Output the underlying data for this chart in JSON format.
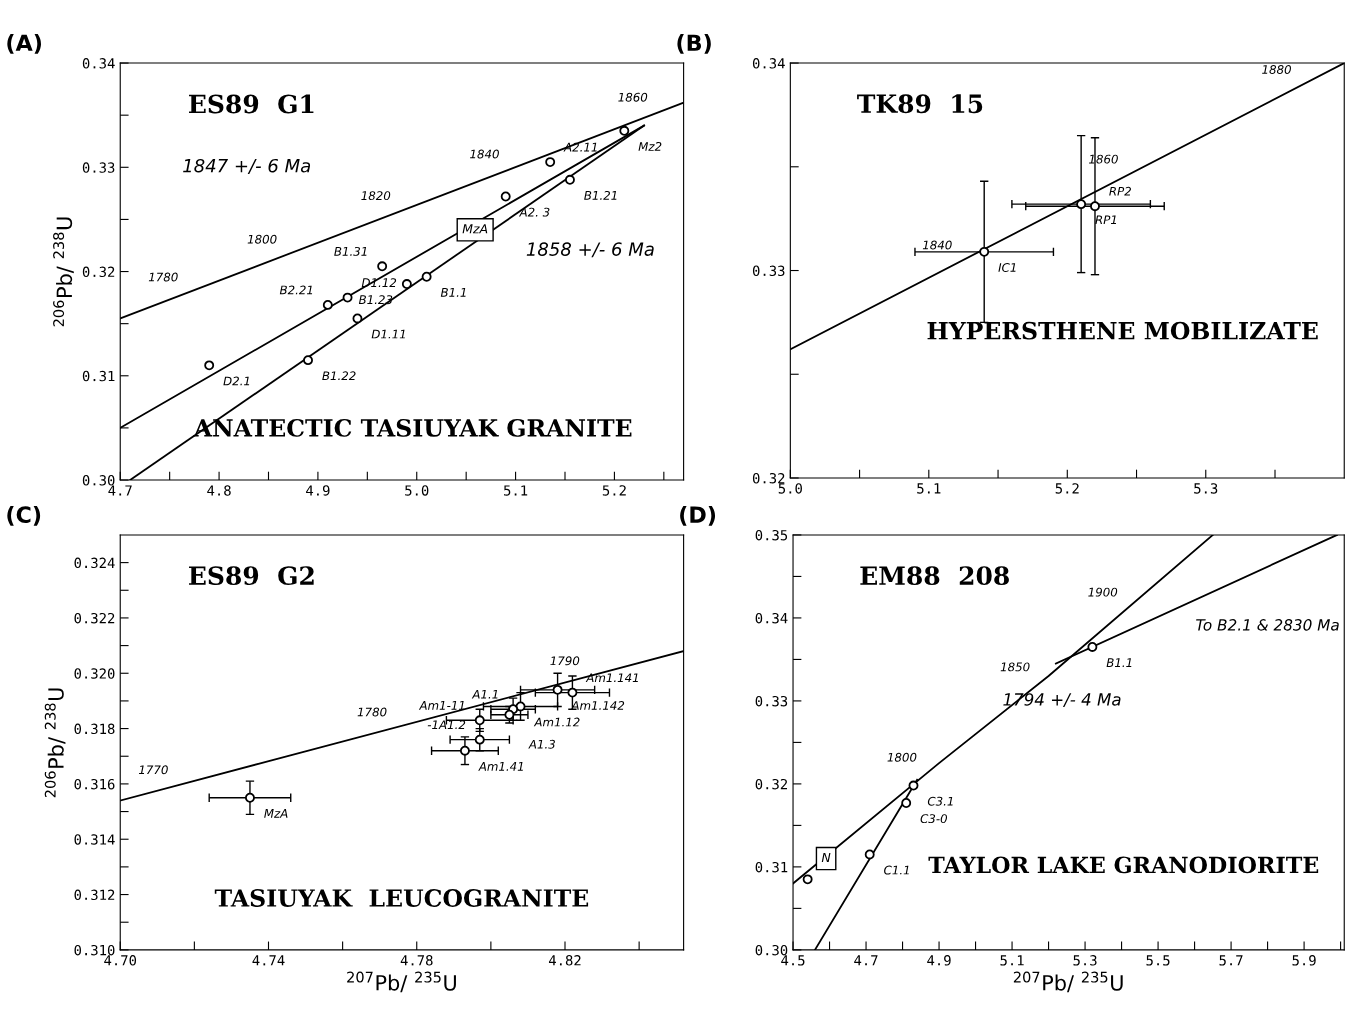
{
  "chart_data": [
    {
      "type": "scatter",
      "title": "(A)",
      "subtitle": "ES89  G1",
      "ylabel": "$^{206}$Pb/ $^{238}$U",
      "xlim": [
        4.7,
        5.27
      ],
      "ylim": [
        0.3,
        0.34
      ],
      "xticks": [
        4.7,
        {
          "value": 4.75,
          "label": null
        },
        4.8,
        {
          "value": 4.85,
          "label": null
        },
        4.9,
        {
          "value": 4.95,
          "label": null
        },
        {
          "value": 5.0,
          "label": "5.0"
        },
        {
          "value": 5.05,
          "label": null
        },
        5.1,
        {
          "value": 5.15,
          "label": null
        },
        5.2,
        {
          "value": 5.25,
          "label": null
        }
      ],
      "yticks": [
        {
          "value": 0.3,
          "label": "0.30"
        },
        {
          "value": 0.305,
          "label": null
        },
        0.31,
        {
          "value": 0.315,
          "label": null
        },
        {
          "value": 0.32,
          "label": "0.32"
        },
        {
          "value": 0.325,
          "label": null
        },
        0.33,
        {
          "value": 0.335,
          "label": null
        },
        0.34
      ],
      "series": [
        {
          "type": "line",
          "color": "#000000",
          "x": [
            4.7,
            5.27
          ],
          "values": [
            0.3155,
            0.3362
          ]
        },
        {
          "type": "line",
          "color": "#000000",
          "x": [
            4.7,
            5.23
          ],
          "values": [
            0.305,
            0.334
          ]
        },
        {
          "type": "line",
          "color": "#000000",
          "x": [
            4.71,
            5.23
          ],
          "values": [
            0.3,
            0.334
          ]
        },
        {
          "color": "#000000",
          "marker": "circle",
          "x": [
            4.79,
            4.91,
            4.93,
            4.965,
            5.09,
            5.135,
            5.21,
            5.155,
            5.01,
            4.99,
            4.94,
            4.89
          ],
          "values": [
            0.311,
            0.3168,
            0.3175,
            0.3205,
            0.3272,
            0.3305,
            0.3335,
            0.3288,
            0.3195,
            0.3188,
            0.3155,
            0.3115
          ]
        }
      ],
      "annotations": [
        {
          "text": "1780",
          "x": 4.77,
          "y": 0.31804
        },
        {
          "text": "1800",
          "x": 4.87,
          "y": 0.32167
        },
        {
          "text": "1820",
          "x": 4.985,
          "y": 0.32585
        },
        {
          "text": "1840",
          "x": 5.095,
          "y": 0.32984
        },
        {
          "text": "1860",
          "x": 5.245,
          "y": 0.33529
        },
        {
          "text": "D2.1",
          "x": 4.79,
          "y": 0.311
        },
        {
          "text": "B2.21",
          "x": 4.91,
          "y": 0.3168
        },
        {
          "text": "D1.12",
          "x": 4.93,
          "y": 0.3175
        },
        {
          "text": "B1.31",
          "x": 4.965,
          "y": 0.3205
        },
        {
          "text": "A2. 3",
          "x": 5.09,
          "y": 0.3272
        },
        {
          "text": "A2.11",
          "x": 5.135,
          "y": 0.3305
        },
        {
          "text": "Mz2",
          "x": 5.21,
          "y": 0.3335
        },
        {
          "text": "B1.21",
          "x": 5.155,
          "y": 0.3288
        },
        {
          "text": "B1.1",
          "x": 5.01,
          "y": 0.3195
        },
        {
          "text": "B1.23",
          "x": 4.99,
          "y": 0.3188
        },
        {
          "text": "D1.11",
          "x": 4.94,
          "y": 0.3155
        },
        {
          "text": "B1.22",
          "x": 4.89,
          "y": 0.3115
        },
        "MzA",
        "1847 +/- 6 Ma",
        "1858 +/- 6 Ma",
        "ANATECTIC TASIUYAK GRANITE"
      ]
    },
    {
      "type": "scatter",
      "title": "(B)",
      "subtitle": "TK89  15",
      "xlim": [
        5.0,
        5.4
      ],
      "ylim": [
        0.32,
        0.34
      ],
      "xticks": [
        {
          "value": 5.0,
          "label": "5.0"
        },
        {
          "value": 5.05,
          "label": null
        },
        5.1,
        {
          "value": 5.15,
          "label": null
        },
        5.2,
        {
          "value": 5.25,
          "label": null
        },
        5.3,
        {
          "value": 5.35,
          "label": null
        }
      ],
      "yticks": [
        {
          "value": 0.32,
          "label": "0.32"
        },
        {
          "value": 0.325,
          "label": null
        },
        {
          "value": 0.33,
          "label": "0.33"
        },
        {
          "value": 0.335,
          "label": null
        },
        {
          "value": 0.34,
          "label": "0.34"
        }
      ],
      "series": [
        {
          "type": "line",
          "color": "#000000",
          "x": [
            5.0,
            5.4
          ],
          "values": [
            0.3262,
            0.34
          ]
        },
        {
          "color": "#000000",
          "marker": "circle",
          "x": [
            5.14,
            5.21,
            5.22
          ],
          "values": [
            0.3309,
            0.3332,
            0.3331
          ],
          "xerrors": [
            0.05,
            0.05,
            0.05
          ],
          "errors": [
            0.0034,
            0.0033,
            0.0033
          ]
        }
      ],
      "annotations": [
        {
          "text": "1840",
          "x": 5.125,
          "y": 0.33051
        },
        {
          "text": "1860",
          "x": 5.245,
          "y": 0.33465
        },
        {
          "text": "1880",
          "x": 5.37,
          "y": 0.33897
        },
        {
          "text": "IC1",
          "x": 5.14,
          "y": 0.3309
        },
        {
          "text": "RP1",
          "x": 5.21,
          "y": 0.3332
        },
        {
          "text": "RP2",
          "x": 5.22,
          "y": 0.3331
        },
        "HYPERSTHENE MOBILIZATE"
      ]
    },
    {
      "type": "scatter",
      "title": "(C)",
      "subtitle": "ES89  G2",
      "xlabel": "$^{207}$Pb/ $^{235}$U",
      "ylabel": "$^{206}$Pb/ $^{238}$U",
      "xlim": [
        4.7,
        4.852
      ],
      "ylim": [
        0.31,
        0.325
      ],
      "xticks": [
        {
          "value": 4.7,
          "label": "4.70"
        },
        {
          "value": 4.72,
          "label": null
        },
        4.74,
        {
          "value": 4.76,
          "label": null
        },
        4.78,
        {
          "value": 4.8,
          "label": null
        },
        4.82,
        {
          "value": 4.84,
          "label": null
        }
      ],
      "yticks": [
        {
          "value": 0.31,
          "label": "0.310"
        },
        {
          "value": 0.311,
          "label": null
        },
        0.312,
        {
          "value": 0.313,
          "label": null
        },
        0.314,
        {
          "value": 0.315,
          "label": null
        },
        0.316,
        {
          "value": 0.317,
          "label": null
        },
        0.318,
        {
          "value": 0.319,
          "label": null
        },
        {
          "value": 0.32,
          "label": "0.320"
        },
        {
          "value": 0.321,
          "label": null
        },
        0.322,
        {
          "value": 0.323,
          "label": null
        },
        0.324
      ],
      "series": [
        {
          "type": "line",
          "color": "#000000",
          "x": [
            4.7,
            4.852
          ],
          "values": [
            0.3154,
            0.3208
          ]
        },
        {
          "color": "#000000",
          "marker": "circle",
          "x": [
            4.735,
            4.808,
            4.806,
            4.818,
            4.822,
            4.797,
            4.805,
            4.797,
            4.793
          ],
          "values": [
            0.3155,
            0.3188,
            0.3187,
            0.3194,
            0.3193,
            0.3183,
            0.3185,
            0.3176,
            0.3172
          ],
          "xerrors": [
            0.011,
            0.01,
            0.006,
            0.01,
            0.01,
            0.009,
            0.005,
            0.008,
            0.009
          ],
          "errors": [
            0.0006,
            0.0005,
            0.0004,
            0.0006,
            0.0006,
            0.0004,
            0.0003,
            0.0004,
            0.0005
          ]
        }
      ],
      "annotations": [
        {
          "text": "1770",
          "x": 4.716,
          "y": 0.31597
        },
        {
          "text": "1780",
          "x": 4.775,
          "y": 0.31806
        },
        {
          "text": "1790",
          "x": 4.827,
          "y": 0.31991
        },
        {
          "text": "MzA",
          "x": 4.735,
          "y": 0.3155
        },
        {
          "text": "Am1.12",
          "x": 4.808,
          "y": 0.3188
        },
        {
          "text": "A1.1",
          "x": 4.806,
          "y": 0.3187
        },
        {
          "text": "Am1.142",
          "x": 4.818,
          "y": 0.3194
        },
        {
          "text": "Am1.141",
          "x": 4.822,
          "y": 0.3193
        },
        {
          "text": "Am1-11",
          "x": 4.797,
          "y": 0.3183
        },
        {
          "text": "A1.3",
          "x": 4.805,
          "y": 0.3185
        },
        {
          "text": "-1A1.2",
          "x": 4.797,
          "y": 0.3176
        },
        {
          "text": "Am1.41",
          "x": 4.793,
          "y": 0.3172
        },
        "TASIUYAK  LEUCOGRANITE"
      ]
    },
    {
      "type": "scatter",
      "title": "(D)",
      "subtitle": "EM88  208",
      "xlabel": "$^{207}$Pb/ $^{235}$U",
      "xlim": [
        4.5,
        6.01
      ],
      "ylim": [
        0.3,
        0.35
      ],
      "xticks": [
        4.5,
        {
          "value": 4.6,
          "label": null
        },
        4.7,
        {
          "value": 4.8,
          "label": null
        },
        4.9,
        {
          "value": 5.0,
          "label": null
        },
        5.1,
        {
          "value": 5.2,
          "label": null
        },
        5.3,
        {
          "value": 5.4,
          "label": null
        },
        5.5,
        {
          "value": 5.6,
          "label": null
        },
        5.7,
        {
          "value": 5.8,
          "label": null
        },
        5.9,
        {
          "value": 6.0,
          "label": null
        }
      ],
      "yticks": [
        {
          "value": 0.3,
          "label": "0.30"
        },
        {
          "value": 0.305,
          "label": null
        },
        0.31,
        {
          "value": 0.315,
          "label": null
        },
        {
          "value": 0.32,
          "label": "0.32"
        },
        {
          "value": 0.325,
          "label": null
        },
        0.33,
        {
          "value": 0.335,
          "label": null
        },
        0.34,
        {
          "value": 0.345,
          "label": null
        },
        0.35
      ],
      "series": [
        {
          "type": "line",
          "color": "#000000",
          "x": [
            4.5,
            4.9,
            5.2,
            5.65
          ],
          "values": [
            0.308,
            0.3225,
            0.333,
            0.35
          ]
        },
        {
          "type": "line",
          "color": "#000000",
          "x": [
            4.56,
            4.84
          ],
          "values": [
            0.3,
            0.3205
          ]
        },
        {
          "type": "line",
          "color": "#000000",
          "x": [
            5.22,
            5.99
          ],
          "values": [
            0.3345,
            0.35
          ]
        },
        {
          "color": "#000000",
          "marker": "circle",
          "x": [
            4.54,
            4.83,
            4.81,
            4.71,
            5.32
          ],
          "values": [
            0.3085,
            0.3198,
            0.3177,
            0.3115,
            0.3365
          ]
        }
      ],
      "annotations": [
        {
          "text": "1800",
          "x": 4.87,
          "y": 0.32141
        },
        {
          "text": "1850",
          "x": 5.18,
          "y": 0.3323
        },
        {
          "text": "1900",
          "x": 5.42,
          "y": 0.34131
        },
        {
          "text": "C3.1",
          "x": 4.83,
          "y": 0.3198
        },
        {
          "text": "C3-0",
          "x": 4.81,
          "y": 0.3177
        },
        {
          "text": "C1.1",
          "x": 4.71,
          "y": 0.3115
        },
        {
          "text": "B1.1",
          "x": 5.32,
          "y": 0.3365
        },
        "N",
        "To B2.1 & 2830 Ma",
        "1794 +/- 4 Ma",
        "TAYLOR LAKE GRANODIORITE"
      ]
    }
  ]
}
